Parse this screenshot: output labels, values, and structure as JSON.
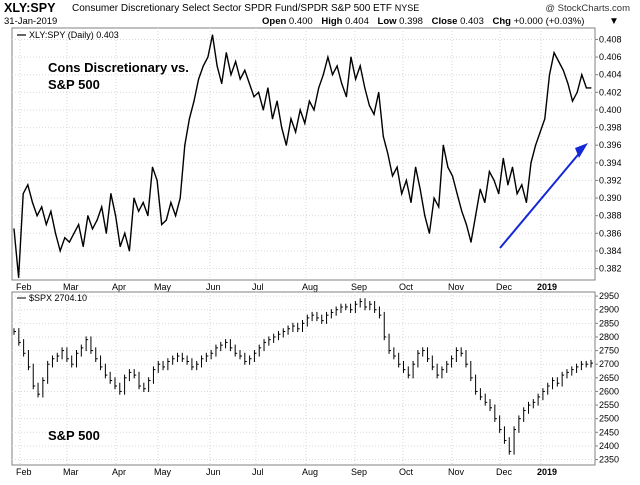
{
  "header": {
    "symbol": "XLY:SPY",
    "name": "Consumer Discretionary Select Sector SPDR Fund/SPDR S&P 500 ETF",
    "exchange": "NYSE",
    "date": "31-Jan-2019",
    "source": "@ StockCharts.com",
    "quote": {
      "open_label": "Open",
      "open": "0.400",
      "high_label": "High",
      "high": "0.404",
      "low_label": "Low",
      "low": "0.398",
      "close_label": "Close",
      "close": "0.403",
      "chg_label": "Chg",
      "chg": "+0.000 (+0.03%)"
    },
    "arrow_glyph": "▼"
  },
  "chart_data": [
    {
      "type": "line",
      "legend": "XLY:SPY (Daily) 0.403",
      "annotation": "Cons Discretionary vs. S&P 500",
      "x_ticks": [
        "Feb",
        "Mar",
        "Apr",
        "May",
        "Jun",
        "Jul",
        "Aug",
        "Sep",
        "Oct",
        "Nov",
        "Dec",
        "2019"
      ],
      "y_ticks": [
        "0.382",
        "0.384",
        "0.386",
        "0.388",
        "0.390",
        "0.392",
        "0.394",
        "0.396",
        "0.398",
        "0.400",
        "0.402",
        "0.404",
        "0.406",
        "0.408"
      ],
      "ylim": [
        0.3807,
        0.4093
      ],
      "grid": true,
      "series": [
        {
          "values": [
            0.3865,
            0.381,
            0.3905,
            0.3915,
            0.3895,
            0.388,
            0.389,
            0.387,
            0.3885,
            0.386,
            0.384,
            0.3855,
            0.385,
            0.386,
            0.387,
            0.3845,
            0.388,
            0.3865,
            0.3875,
            0.389,
            0.386,
            0.3905,
            0.388,
            0.3845,
            0.386,
            0.384,
            0.39,
            0.3885,
            0.3895,
            0.388,
            0.3935,
            0.392,
            0.387,
            0.3875,
            0.3895,
            0.388,
            0.39,
            0.396,
            0.399,
            0.401,
            0.4035,
            0.405,
            0.406,
            0.4085,
            0.405,
            0.403,
            0.4065,
            0.404,
            0.4055,
            0.4035,
            0.4045,
            0.403,
            0.4015,
            0.402,
            0.4,
            0.4025,
            0.399,
            0.401,
            0.398,
            0.396,
            0.399,
            0.3975,
            0.4,
            0.3985,
            0.401,
            0.4,
            0.4025,
            0.404,
            0.406,
            0.404,
            0.405,
            0.403,
            0.4015,
            0.406,
            0.4035,
            0.405,
            0.4025,
            0.4005,
            0.3995,
            0.402,
            0.397,
            0.395,
            0.3925,
            0.3935,
            0.3905,
            0.392,
            0.3895,
            0.3935,
            0.391,
            0.388,
            0.386,
            0.39,
            0.389,
            0.396,
            0.3935,
            0.3925,
            0.3905,
            0.3885,
            0.387,
            0.385,
            0.388,
            0.391,
            0.3895,
            0.393,
            0.392,
            0.3905,
            0.3945,
            0.3915,
            0.3935,
            0.3905,
            0.3915,
            0.3895,
            0.394,
            0.396,
            0.3975,
            0.399,
            0.404,
            0.4065,
            0.4055,
            0.4045,
            0.403,
            0.401,
            0.402,
            0.404,
            0.4025,
            0.4025
          ]
        }
      ]
    },
    {
      "type": "bar",
      "legend": "$SPX 2704.10",
      "annotation": "S&P 500",
      "x_ticks": [
        "Feb",
        "Mar",
        "Apr",
        "May",
        "Jun",
        "Jul",
        "Aug",
        "Sep",
        "Oct",
        "Nov",
        "Dec",
        "2019"
      ],
      "y_ticks": [
        "2350",
        "2400",
        "2450",
        "2500",
        "2550",
        "2600",
        "2650",
        "2700",
        "2750",
        "2800",
        "2850",
        "2900",
        "2950"
      ],
      "ylim": [
        2330,
        2965
      ],
      "grid": true,
      "series": [
        {
          "values": [
            2820,
            2780,
            2740,
            2690,
            2620,
            2590,
            2640,
            2700,
            2720,
            2730,
            2750,
            2720,
            2700,
            2740,
            2760,
            2790,
            2750,
            2720,
            2690,
            2660,
            2640,
            2620,
            2600,
            2650,
            2670,
            2660,
            2620,
            2610,
            2640,
            2680,
            2700,
            2690,
            2710,
            2720,
            2730,
            2720,
            2710,
            2690,
            2700,
            2720,
            2730,
            2740,
            2760,
            2770,
            2780,
            2760,
            2740,
            2730,
            2710,
            2720,
            2740,
            2760,
            2780,
            2790,
            2800,
            2810,
            2820,
            2830,
            2840,
            2830,
            2850,
            2870,
            2880,
            2870,
            2860,
            2880,
            2890,
            2900,
            2910,
            2910,
            2900,
            2920,
            2930,
            2910,
            2920,
            2900,
            2880,
            2800,
            2750,
            2730,
            2700,
            2680,
            2660,
            2700,
            2740,
            2750,
            2720,
            2690,
            2660,
            2680,
            2700,
            2720,
            2750,
            2740,
            2700,
            2650,
            2600,
            2580,
            2560,
            2540,
            2500,
            2460,
            2420,
            2380,
            2460,
            2500,
            2530,
            2550,
            2560,
            2580,
            2600,
            2620,
            2640,
            2630,
            2660,
            2670,
            2680,
            2690,
            2700,
            2700,
            2704
          ]
        }
      ]
    }
  ]
}
